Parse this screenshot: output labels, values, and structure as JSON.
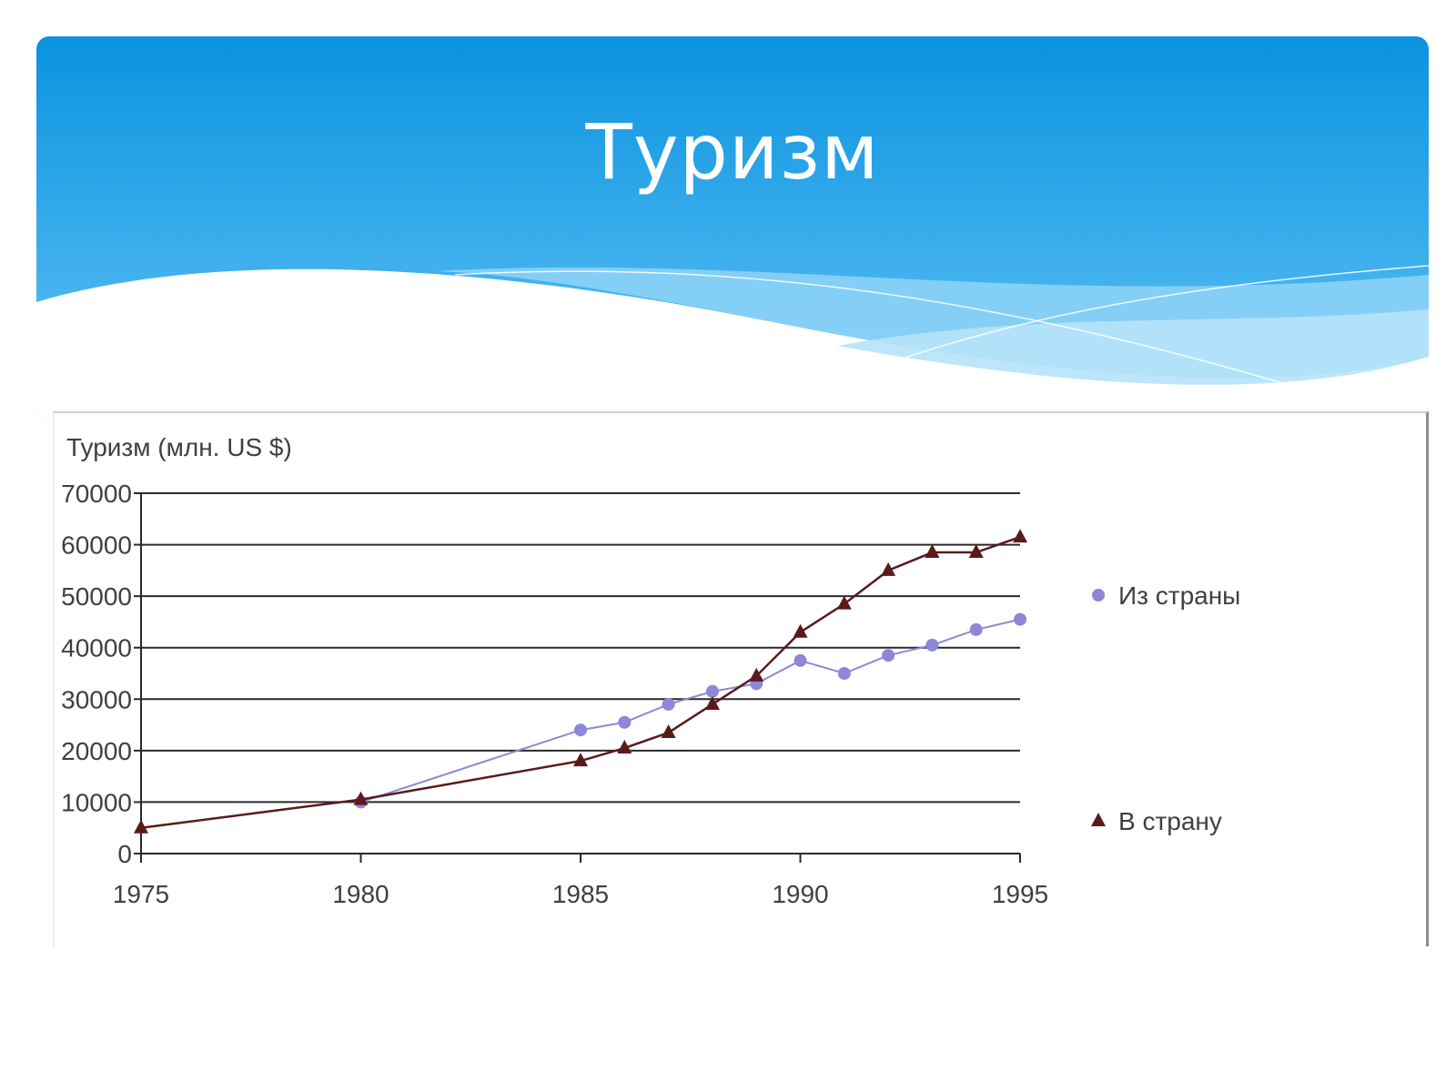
{
  "slide": {
    "title": "Туризм"
  },
  "colors": {
    "header_top": "#0a93e0",
    "header_bottom": "#62c3f5",
    "series_out": "#8e86d6",
    "series_in": "#5a1a1a",
    "grid": "#2a2a2a"
  },
  "chart_data": {
    "type": "line",
    "title": "Туризм (млн. US $)",
    "xlabel": "",
    "ylabel": "",
    "xlim": [
      1975,
      1995
    ],
    "ylim": [
      0,
      70000
    ],
    "x_ticks": [
      1975,
      1980,
      1985,
      1990,
      1995
    ],
    "y_ticks": [
      0,
      10000,
      20000,
      30000,
      40000,
      50000,
      60000,
      70000
    ],
    "grid": true,
    "legend_position": "right",
    "series": [
      {
        "name": "Из страны",
        "marker": "circle",
        "x": [
          1980,
          1985,
          1986,
          1987,
          1988,
          1989,
          1990,
          1991,
          1992,
          1993,
          1994,
          1995
        ],
        "values": [
          10000,
          24000,
          25500,
          29000,
          31500,
          33000,
          37500,
          35000,
          38500,
          40500,
          43500,
          45500
        ]
      },
      {
        "name": "В страну",
        "marker": "triangle",
        "x": [
          1975,
          1980,
          1985,
          1986,
          1987,
          1988,
          1989,
          1990,
          1991,
          1992,
          1993,
          1994,
          1995
        ],
        "values": [
          5000,
          10500,
          18000,
          20500,
          23500,
          29000,
          34500,
          43000,
          48500,
          55000,
          58500,
          58500,
          61500
        ]
      }
    ]
  }
}
